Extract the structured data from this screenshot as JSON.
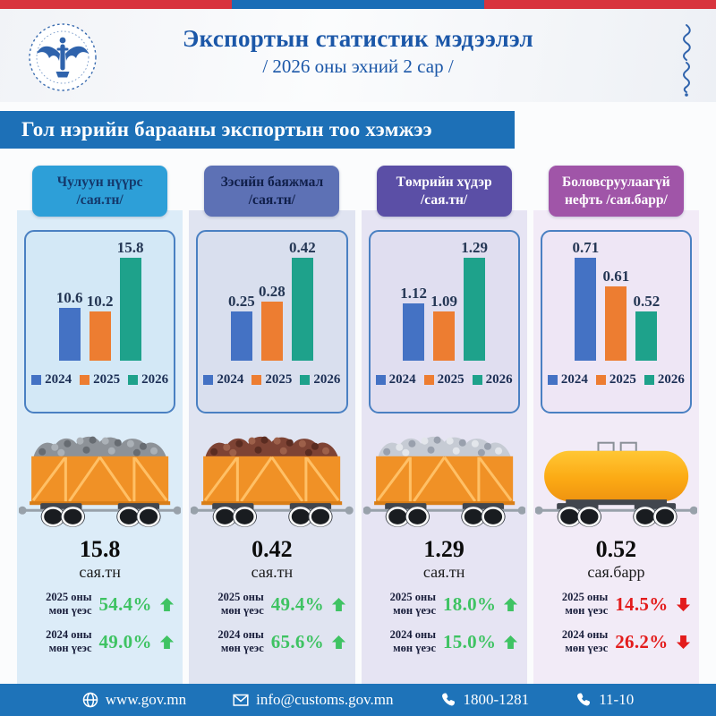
{
  "top_strip_colors": [
    "#d8343e",
    "#1a6db6",
    "#d8343e"
  ],
  "header": {
    "title": "Экспортын статистик мэдээлэл",
    "subtitle": "/ 2026 оны эхний 2 сар /"
  },
  "banner": {
    "text": "Гол нэрийн барааны экспортын тоо хэмжээ",
    "bg": "#1d70b7"
  },
  "legend_years": [
    "2024",
    "2025",
    "2026"
  ],
  "bar_colors": [
    "#4472c4",
    "#ed7d31",
    "#1ea28b"
  ],
  "status_colors": {
    "up": "#3fc363",
    "down": "#e31c1c"
  },
  "chart_data": [
    {
      "type": "bar",
      "title": "Чулуун нүүрс",
      "ylabel": "сая.тн",
      "categories": [
        "2024",
        "2025",
        "2026"
      ],
      "values": [
        10.6,
        10.2,
        15.8
      ],
      "data_labels": [
        "10.6",
        "10.2",
        "15.8"
      ],
      "legend_position": "bottom",
      "grid": false
    },
    {
      "type": "bar",
      "title": "Зэсийн баяжмал",
      "ylabel": "сая.тн",
      "categories": [
        "2024",
        "2025",
        "2026"
      ],
      "values": [
        0.25,
        0.28,
        0.42
      ],
      "data_labels": [
        "0.25",
        "0.28",
        "0.42"
      ],
      "legend_position": "bottom",
      "grid": false
    },
    {
      "type": "bar",
      "title": "Төмрийн хүдэр",
      "ylabel": "сая.тн",
      "categories": [
        "2024",
        "2025",
        "2026"
      ],
      "values": [
        1.12,
        1.09,
        1.29
      ],
      "data_labels": [
        "1.12",
        "1.09",
        "1.29"
      ],
      "legend_position": "bottom",
      "grid": false
    },
    {
      "type": "bar",
      "title": "Боловсруулаагүй нефть",
      "ylabel": "сая.барр",
      "categories": [
        "2024",
        "2025",
        "2026"
      ],
      "values": [
        0.71,
        0.61,
        0.52
      ],
      "data_labels": [
        "0.71",
        "0.61",
        "0.52"
      ],
      "legend_position": "bottom",
      "grid": false
    }
  ],
  "columns": [
    {
      "title": "Чулуун нүүрс",
      "unit_label": "/сая.тн/",
      "header_bg": "#2d9fd8",
      "header_fg": "#14386b",
      "column_bg": "#dcecf8",
      "card_bg": "#d3e8f6",
      "cargo": "coal",
      "total": "15.8",
      "total_unit": "сая.тн",
      "comparisons": [
        {
          "line1": "2025 оны",
          "line2": "мөн үеэс",
          "value": "54.4%",
          "direction": "up"
        },
        {
          "line1": "2024 оны",
          "line2": "мөн үеэс",
          "value": "49.0%",
          "direction": "up"
        }
      ]
    },
    {
      "title": "Зэсийн баяжмал",
      "unit_label": "/сая.тн/",
      "header_bg": "#5d71b5",
      "header_fg": "#101f4a",
      "column_bg": "#e0e4f1",
      "card_bg": "#d9dfee",
      "cargo": "copper",
      "total": "0.42",
      "total_unit": "сая.тн",
      "comparisons": [
        {
          "line1": "2025 оны",
          "line2": "мөн үеэс",
          "value": "49.4%",
          "direction": "up"
        },
        {
          "line1": "2024 оны",
          "line2": "мөн үеэс",
          "value": "65.6%",
          "direction": "up"
        }
      ]
    },
    {
      "title": "Төмрийн хүдэр",
      "unit_label": "/сая.тн/",
      "header_bg": "#5b4fa6",
      "header_fg": "#ffffff",
      "column_bg": "#e6e4f3",
      "card_bg": "#e0def0",
      "cargo": "iron",
      "total": "1.29",
      "total_unit": "сая.тн",
      "comparisons": [
        {
          "line1": "2025 оны",
          "line2": "мөн үеэс",
          "value": "18.0%",
          "direction": "up"
        },
        {
          "line1": "2024 оны",
          "line2": "мөн үеэс",
          "value": "15.0%",
          "direction": "up"
        }
      ]
    },
    {
      "title": "Боловсруулаагүй",
      "unit_label": "нефть /сая.барр/",
      "header_bg": "#a055a8",
      "header_fg": "#ffffff",
      "column_bg": "#f2ebf7",
      "card_bg": "#eee6f5",
      "cargo": "tank",
      "total": "0.52",
      "total_unit": "сая.барр",
      "comparisons": [
        {
          "line1": "2025 оны",
          "line2": "мөн үеэс",
          "value": "14.5%",
          "direction": "down"
        },
        {
          "line1": "2024 оны",
          "line2": "мөн үеэс",
          "value": "26.2%",
          "direction": "down"
        }
      ]
    }
  ],
  "footer": {
    "bg": "#1e73b9",
    "website": "www.gov.mn",
    "email": "info@customs.gov.mn",
    "phone_primary": "1800-1281",
    "phone_secondary": "11-10"
  }
}
